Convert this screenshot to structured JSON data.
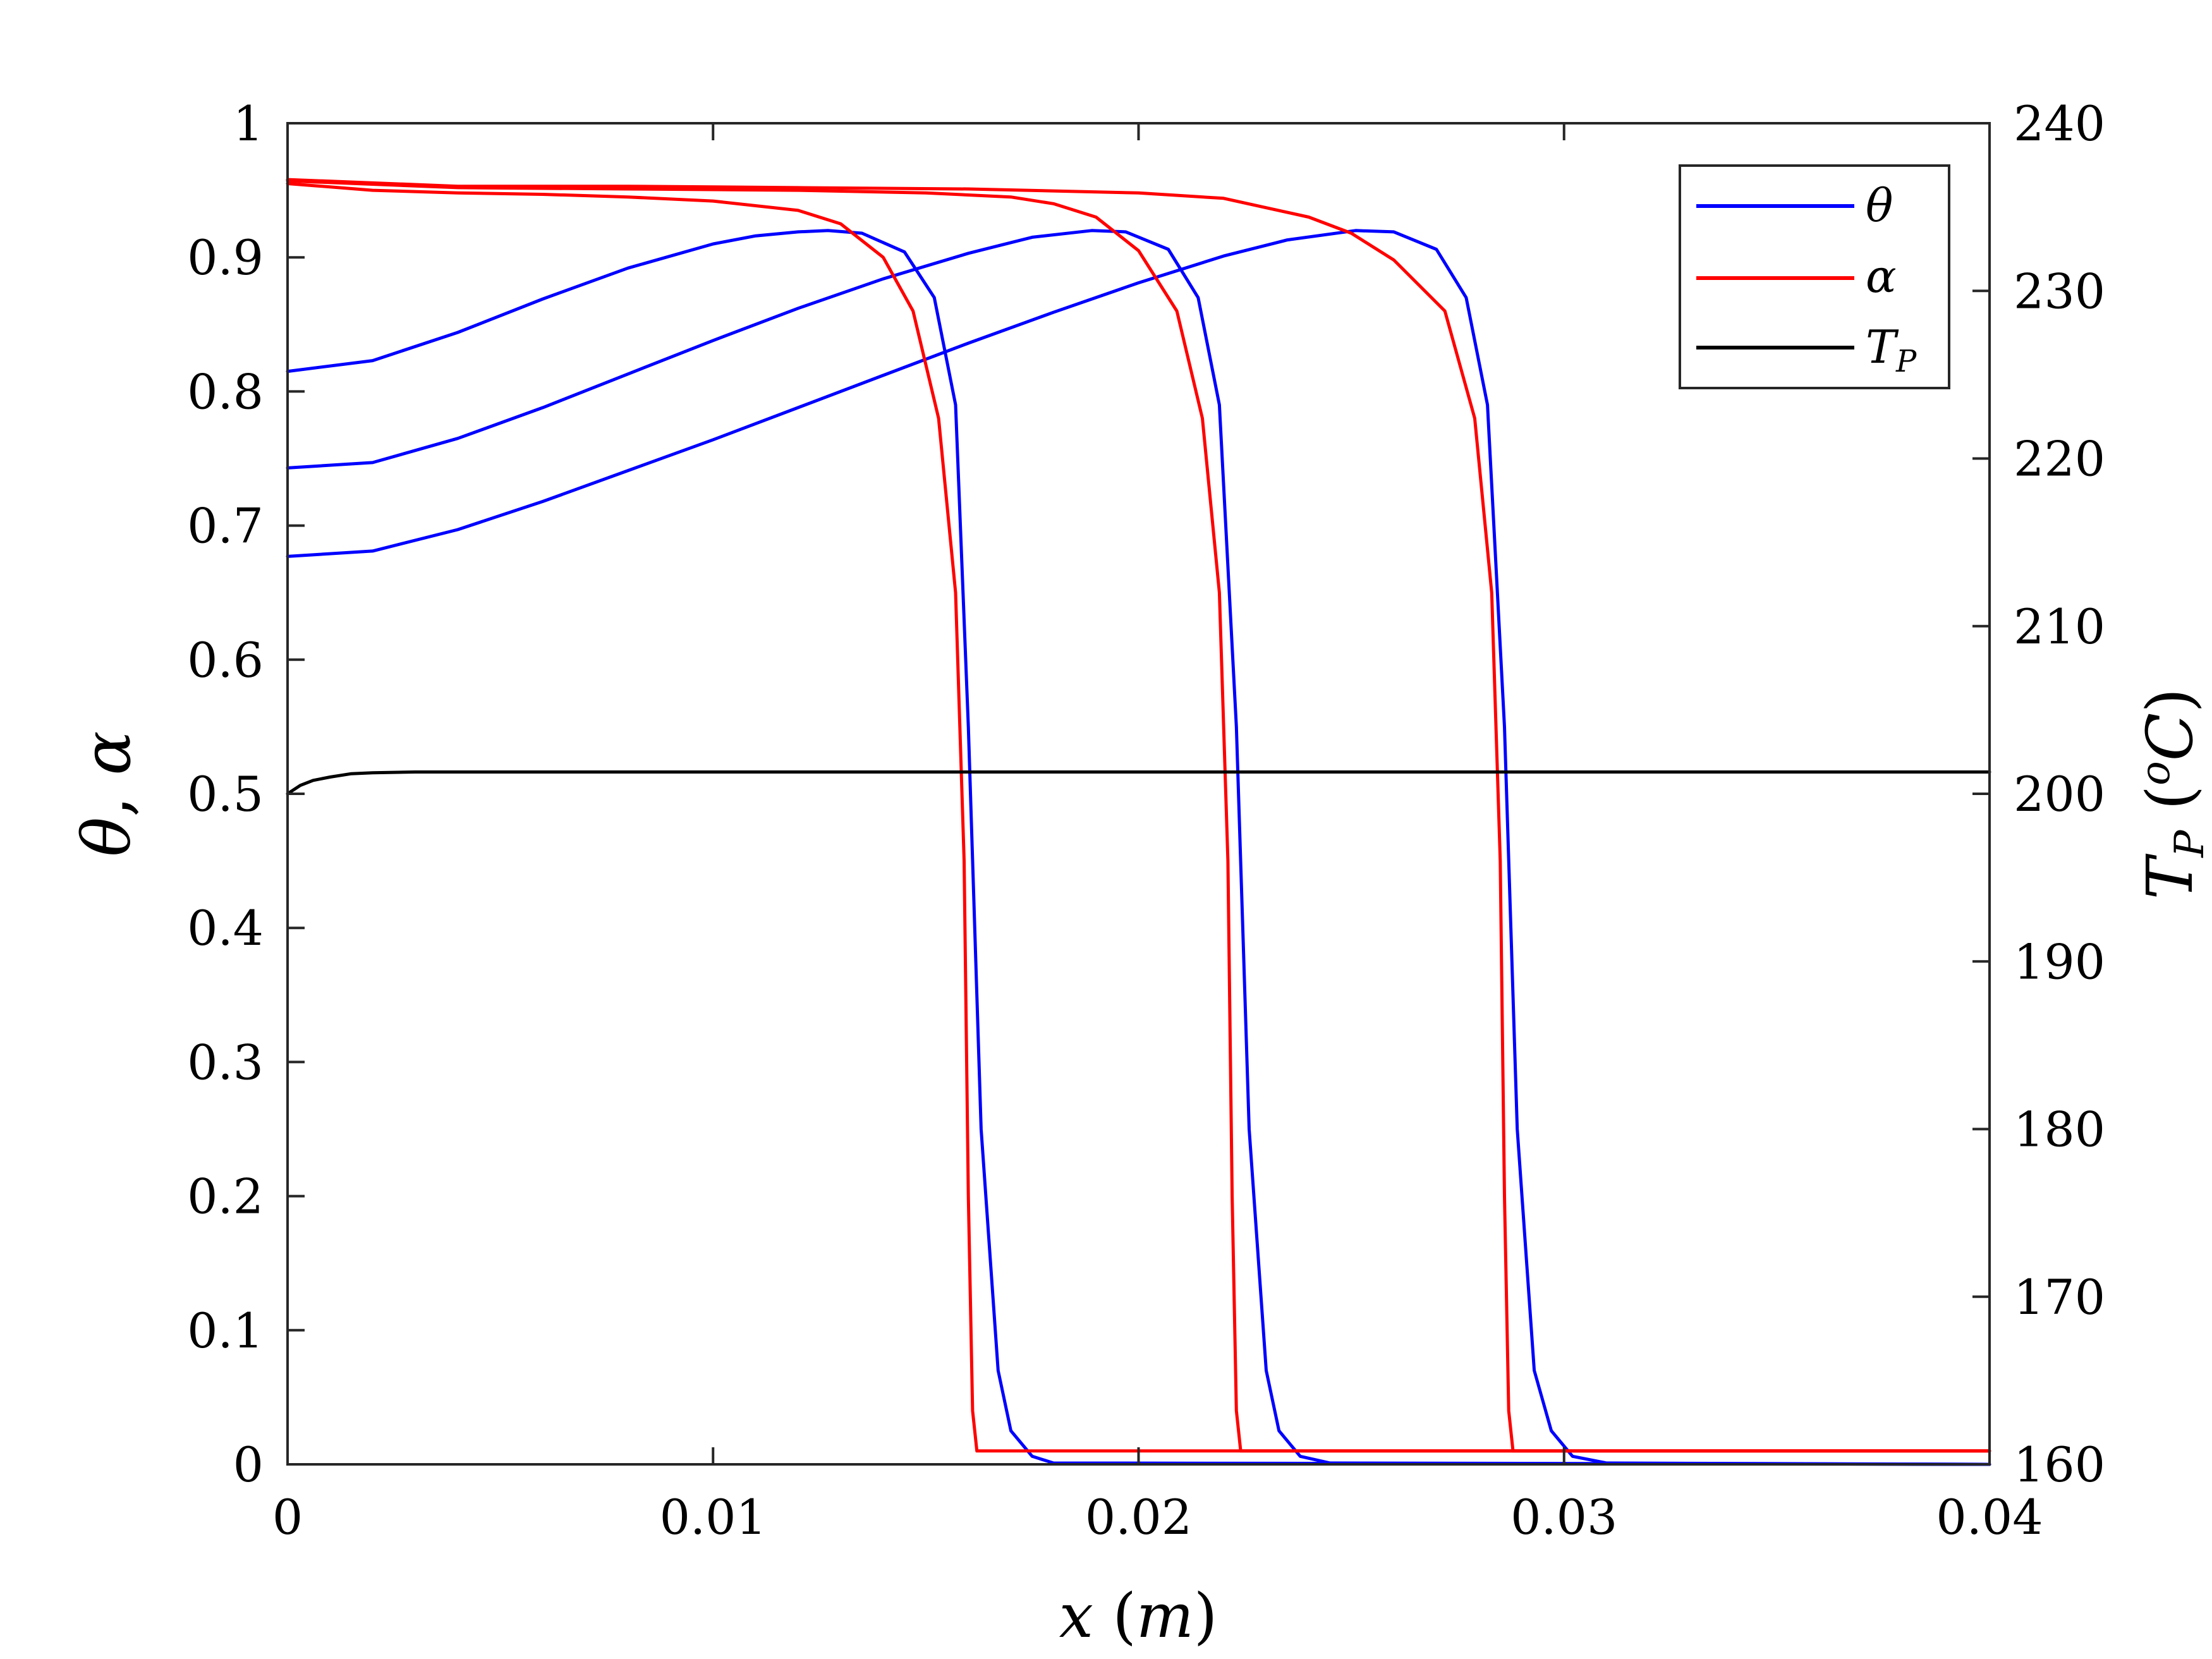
{
  "chart_data": {
    "type": "line",
    "xlabel": "x (m)",
    "ylabel_left": "θ, α",
    "ylabel_right": "T_P (°C)",
    "xlim": [
      0,
      0.04
    ],
    "ylim_left": [
      0,
      1
    ],
    "ylim_right": [
      160,
      240
    ],
    "xticks": [
      "0",
      "0.01",
      "0.02",
      "0.03",
      "0.04"
    ],
    "yticks_left": [
      "0",
      "0.1",
      "0.2",
      "0.3",
      "0.4",
      "0.5",
      "0.6",
      "0.7",
      "0.8",
      "0.9",
      "1"
    ],
    "yticks_right": [
      "160",
      "170",
      "180",
      "190",
      "200",
      "210",
      "220",
      "230",
      "240"
    ],
    "grid": false,
    "legend_position": "top-right",
    "legend": [
      {
        "label": "θ",
        "color": "#0000ff"
      },
      {
        "label": "α",
        "color": "#ff0000"
      },
      {
        "label": "T_P",
        "color": "#000000"
      }
    ],
    "series": [
      {
        "name": "θ",
        "axis": "left",
        "color": "#0000ff",
        "x": [
          0,
          0.002,
          0.004,
          0.006,
          0.008,
          0.01,
          0.011,
          0.012,
          0.0127,
          0.0135,
          0.0145,
          0.0152,
          0.0157,
          0.016,
          0.0163,
          0.0167,
          0.017,
          0.0175,
          0.018,
          0.04
        ],
        "y": [
          0.815,
          0.823,
          0.844,
          0.869,
          0.892,
          0.91,
          0.916,
          0.919,
          0.92,
          0.918,
          0.904,
          0.87,
          0.79,
          0.55,
          0.25,
          0.07,
          0.025,
          0.006,
          0.001,
          0
        ]
      },
      {
        "name": "θ",
        "axis": "left",
        "color": "#0000ff",
        "x": [
          0,
          0.002,
          0.004,
          0.006,
          0.008,
          0.01,
          0.012,
          0.014,
          0.016,
          0.0175,
          0.0189,
          0.0197,
          0.0207,
          0.0214,
          0.0219,
          0.0223,
          0.0226,
          0.023,
          0.0233,
          0.0238,
          0.0245,
          0.04
        ],
        "y": [
          0.743,
          0.747,
          0.765,
          0.788,
          0.813,
          0.838,
          0.862,
          0.884,
          0.903,
          0.915,
          0.92,
          0.919,
          0.906,
          0.87,
          0.79,
          0.55,
          0.25,
          0.07,
          0.025,
          0.006,
          0.001,
          0
        ]
      },
      {
        "name": "θ",
        "axis": "left",
        "color": "#0000ff",
        "x": [
          0,
          0.002,
          0.004,
          0.006,
          0.008,
          0.01,
          0.012,
          0.014,
          0.016,
          0.018,
          0.02,
          0.022,
          0.0235,
          0.0251,
          0.026,
          0.027,
          0.0277,
          0.0282,
          0.0286,
          0.0289,
          0.0293,
          0.0297,
          0.0302,
          0.031,
          0.04
        ],
        "y": [
          0.677,
          0.681,
          0.697,
          0.718,
          0.741,
          0.764,
          0.788,
          0.812,
          0.836,
          0.859,
          0.881,
          0.901,
          0.913,
          0.92,
          0.919,
          0.906,
          0.87,
          0.79,
          0.55,
          0.25,
          0.07,
          0.025,
          0.006,
          0.001,
          0
        ]
      },
      {
        "name": "α",
        "axis": "left",
        "color": "#ff0000",
        "x": [
          0,
          0.002,
          0.004,
          0.006,
          0.008,
          0.01,
          0.012,
          0.013,
          0.014,
          0.0147,
          0.0153,
          0.0157,
          0.0159,
          0.016,
          0.0161,
          0.0162,
          0.04
        ],
        "y": [
          0.955,
          0.95,
          0.948,
          0.947,
          0.945,
          0.942,
          0.935,
          0.925,
          0.9,
          0.86,
          0.78,
          0.65,
          0.45,
          0.2,
          0.04,
          0.01,
          0.01
        ]
      },
      {
        "name": "α",
        "axis": "left",
        "color": "#ff0000",
        "x": [
          0,
          0.004,
          0.008,
          0.012,
          0.015,
          0.017,
          0.018,
          0.019,
          0.02,
          0.0209,
          0.0215,
          0.0219,
          0.0221,
          0.0222,
          0.0223,
          0.0224,
          0.04
        ],
        "y": [
          0.957,
          0.952,
          0.951,
          0.95,
          0.948,
          0.945,
          0.94,
          0.93,
          0.905,
          0.86,
          0.78,
          0.65,
          0.45,
          0.2,
          0.04,
          0.01,
          0.01
        ]
      },
      {
        "name": "α",
        "axis": "left",
        "color": "#ff0000",
        "x": [
          0,
          0.004,
          0.008,
          0.012,
          0.016,
          0.02,
          0.022,
          0.024,
          0.025,
          0.026,
          0.0272,
          0.0279,
          0.0283,
          0.0285,
          0.0286,
          0.0287,
          0.0288,
          0.04
        ],
        "y": [
          0.958,
          0.953,
          0.953,
          0.952,
          0.951,
          0.948,
          0.944,
          0.93,
          0.918,
          0.898,
          0.86,
          0.78,
          0.65,
          0.45,
          0.2,
          0.04,
          0.01,
          0.01
        ]
      },
      {
        "name": "T_P",
        "axis": "right",
        "color": "#000000",
        "x": [
          0,
          0.0003,
          0.0006,
          0.001,
          0.0015,
          0.002,
          0.003,
          0.005,
          0.04
        ],
        "y": [
          200.0,
          200.5,
          200.8,
          201.0,
          201.2,
          201.25,
          201.3,
          201.3,
          201.3
        ]
      }
    ]
  }
}
